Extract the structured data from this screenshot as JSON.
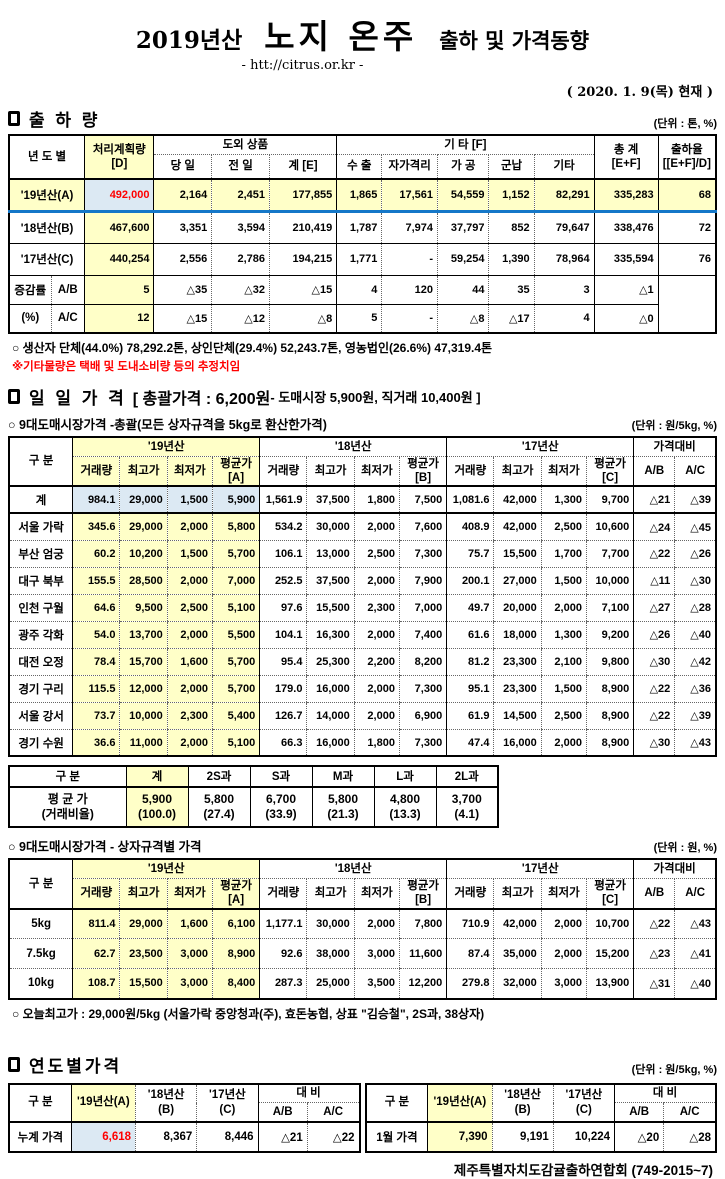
{
  "palette": {
    "yellow": "#FFFFC8",
    "blue": "#DCE9F3",
    "red": "#FF0000",
    "row_a_line": "#1477C8"
  },
  "header": {
    "year": "2019년산",
    "title": "노지 온주",
    "subtitle": "출하 및 가격동향",
    "url": "- htt://citrus.or.kr -",
    "asof": "( 2020. 1. 9(목) 현재 )"
  },
  "shipment": {
    "section_title": "출 하 량",
    "unit": "(단위 : 톤, %)",
    "head": {
      "col_year": "년 도 별",
      "col_plan": "처리계획량\n[D]",
      "grp_dooe": "도외 상품",
      "col_today": "당 일",
      "col_prev": "전 일",
      "col_sumE": "계 [E]",
      "grp_etc": "기      타 [F]",
      "col_export": "수 출",
      "col_quarantine": "자가격리",
      "col_process": "가 공",
      "col_military": "군납",
      "col_other": "기타",
      "col_total": "총  계\n[E+F]",
      "col_rate": "출하율\n[[E+F]/D]"
    },
    "rows": [
      {
        "label": "'19년산(A)",
        "cls": "rowA",
        "cells": [
          "492,000",
          "2,164",
          "2,451",
          "177,855",
          "1,865",
          "17,561",
          "54,559",
          "1,152",
          "82,291",
          "335,283",
          "68"
        ]
      },
      {
        "label": "'18년산(B)",
        "cells": [
          "467,600",
          "3,351",
          "3,594",
          "210,419",
          "1,787",
          "7,974",
          "37,797",
          "852",
          "79,647",
          "338,476",
          "72"
        ]
      },
      {
        "label": "'17년산(C)",
        "cells": [
          "440,254",
          "2,556",
          "2,786",
          "194,215",
          "1,771",
          "-",
          "59,254",
          "1,390",
          "78,964",
          "335,594",
          "76"
        ]
      },
      {
        "labels": [
          "증감률",
          "A/B"
        ],
        "cls": "chg",
        "tail": 2,
        "cells": [
          "5",
          "△35",
          "△32",
          "△15",
          "4",
          "120",
          "44",
          "35",
          "3",
          "△1"
        ]
      },
      {
        "labels": [
          "(%)",
          "A/C"
        ],
        "cls": "chg chg2",
        "cells": [
          "12",
          "△15",
          "△12",
          "△8",
          "5",
          "-",
          "△8",
          "△17",
          "4",
          "△0"
        ]
      }
    ],
    "note1": "○ 생산자 단체(44.0%)  78,292.2톤,  상인단체(29.4%)  52,243.7톤,  영농법인(26.6%)  47,319.4톤",
    "note2": "※기타물량은 택배 및 도내소비량 등의 추정치임"
  },
  "daily": {
    "section_title": "일 일 가 격",
    "bracket_main": "[ 총괄가격 : 6,200원",
    "bracket_sub": "- 도매시장  5,900원,  직거래  10,400원 ]",
    "sub1": "○ 9대도매시장가격 -총괄(모든 상자규격을 5kg로 환산한가격)",
    "unit1": "(단위 : 원/5kg, %)",
    "price_head": {
      "col_label": "구  분",
      "y19": "'19년산",
      "y18": "'18년산",
      "y17": "'17년산",
      "cmp": "가격대비",
      "vol": "거래량",
      "high": "최고가",
      "low": "최저가",
      "avgA": "평균가[A]",
      "avgB": "평균가[B]",
      "avgC": "평균가[C]",
      "ab": "A/B",
      "ac": "A/C"
    },
    "market_rows": [
      {
        "label": "계",
        "cls": "first",
        "cells": [
          "984.1",
          "29,000",
          "1,500",
          "5,900",
          "1,561.9",
          "37,500",
          "1,800",
          "7,500",
          "1,081.6",
          "42,000",
          "1,300",
          "9,700",
          "△21",
          "△39"
        ]
      },
      {
        "label": "서울 가락",
        "cells": [
          "345.6",
          "29,000",
          "2,000",
          "5,800",
          "534.2",
          "30,000",
          "2,000",
          "7,600",
          "408.9",
          "42,000",
          "2,500",
          "10,600",
          "△24",
          "△45"
        ]
      },
      {
        "label": "부산 엄궁",
        "cells": [
          "60.2",
          "10,200",
          "1,500",
          "5,700",
          "106.1",
          "13,000",
          "2,500",
          "7,300",
          "75.7",
          "15,500",
          "1,700",
          "7,700",
          "△22",
          "△26"
        ]
      },
      {
        "label": "대구 북부",
        "cells": [
          "155.5",
          "28,500",
          "2,000",
          "7,000",
          "252.5",
          "37,500",
          "2,000",
          "7,900",
          "200.1",
          "27,000",
          "1,500",
          "10,000",
          "△11",
          "△30"
        ]
      },
      {
        "label": "인천 구월",
        "cells": [
          "64.6",
          "9,500",
          "2,500",
          "5,100",
          "97.6",
          "15,500",
          "2,300",
          "7,000",
          "49.7",
          "20,000",
          "2,000",
          "7,100",
          "△27",
          "△28"
        ]
      },
      {
        "label": "광주 각화",
        "cells": [
          "54.0",
          "13,700",
          "2,000",
          "5,500",
          "104.1",
          "16,300",
          "2,000",
          "7,400",
          "61.6",
          "18,000",
          "1,300",
          "9,200",
          "△26",
          "△40"
        ]
      },
      {
        "label": "대전 오정",
        "cells": [
          "78.4",
          "15,700",
          "1,600",
          "5,700",
          "95.4",
          "25,300",
          "2,200",
          "8,200",
          "81.2",
          "23,300",
          "2,100",
          "9,800",
          "△30",
          "△42"
        ]
      },
      {
        "label": "경기 구리",
        "cells": [
          "115.5",
          "12,000",
          "2,000",
          "5,700",
          "179.0",
          "16,000",
          "2,000",
          "7,300",
          "95.1",
          "23,300",
          "1,500",
          "8,900",
          "△22",
          "△36"
        ]
      },
      {
        "label": "서울 강서",
        "cells": [
          "73.7",
          "10,000",
          "2,300",
          "5,400",
          "126.7",
          "14,000",
          "2,000",
          "6,900",
          "61.9",
          "14,500",
          "2,500",
          "8,900",
          "△22",
          "△39"
        ]
      },
      {
        "label": "경기 수원",
        "cells": [
          "36.6",
          "11,000",
          "2,000",
          "5,100",
          "66.3",
          "16,000",
          "1,800",
          "7,300",
          "47.4",
          "16,000",
          "2,000",
          "8,900",
          "△30",
          "△43"
        ]
      }
    ],
    "size_summary": {
      "cols": [
        "구   분",
        "계",
        "2S과",
        "S과",
        "M과",
        "L과",
        "2L과"
      ],
      "row_label": "평 균 가\n(거래비율)",
      "values": [
        "5,900\n(100.0)",
        "5,800\n(27.4)",
        "6,700\n(33.9)",
        "5,800\n(21.3)",
        "4,800\n(13.3)",
        "3,700\n(4.1)"
      ]
    },
    "sub2": "○ 9대도매시장가격 - 상자규격별 가격",
    "unit2": "(단위 : 원, %)",
    "size_rows": [
      {
        "label": "5kg",
        "cells": [
          "811.4",
          "29,000",
          "1,600",
          "6,100",
          "1,177.1",
          "30,000",
          "2,000",
          "7,800",
          "710.9",
          "42,000",
          "2,000",
          "10,700",
          "△22",
          "△43"
        ]
      },
      {
        "label": "7.5kg",
        "cells": [
          "62.7",
          "23,500",
          "3,000",
          "8,900",
          "92.6",
          "38,000",
          "3,000",
          "11,600",
          "87.4",
          "35,000",
          "2,000",
          "15,200",
          "△23",
          "△41"
        ]
      },
      {
        "label": "10kg",
        "cells": [
          "108.7",
          "15,500",
          "3,000",
          "8,400",
          "287.3",
          "25,000",
          "3,500",
          "12,200",
          "279.8",
          "32,000",
          "3,000",
          "13,900",
          "△31",
          "△40"
        ]
      }
    ],
    "note": "○ 오늘최고가 :   29,000원/5kg (서울가락   중앙청과(주),   효돈농협,   상표 \"김승철\",   2S과, 38상자)"
  },
  "yearly": {
    "section_title": "연도별가격",
    "unit": "(단위 : 원/5kg, %)",
    "head": {
      "col_label": "구    분",
      "y19": "'19년산(A)",
      "y18": "'18년산(B)",
      "y17": "'17년산(C)",
      "cmp": "대      비",
      "ab": "A/B",
      "ac": "A/C"
    },
    "left": {
      "label": "누계 가격",
      "v19": "6,618",
      "v18": "8,367",
      "v17": "8,446",
      "ab": "△21",
      "ac": "△22"
    },
    "right": {
      "label": "1월 가격",
      "v19": "7,390",
      "v18": "9,191",
      "v17": "10,224",
      "ab": "△20",
      "ac": "△28"
    }
  },
  "footer": "제주특별자치도감귤출하연합회 (749-2015~7)"
}
